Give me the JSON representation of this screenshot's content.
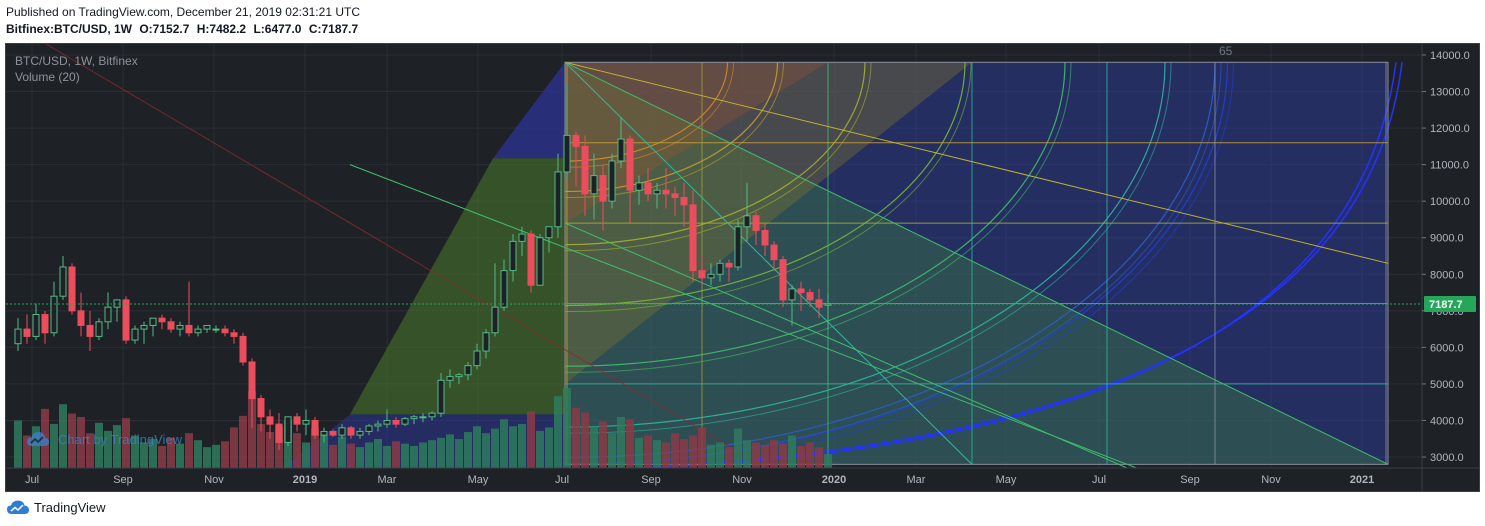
{
  "header": {
    "published": "Published on TradingView.com, December 21, 2019 02:31:21 UTC",
    "symbol": "Bitfinex:BTC/USD, 1W",
    "o": "O:7152.7",
    "h": "H:7482.2",
    "l": "L:6477.0",
    "c": "C:7187.7"
  },
  "legend": {
    "title": "BTC/USD, 1W, Bitfinex",
    "volume": "Volume (20)"
  },
  "watermark": "Chart by TradingView",
  "footer": "TradingView",
  "gann_label": "65",
  "last_price_label": "7187.7",
  "colors": {
    "background": "#1e2226",
    "up": "#53b987",
    "down": "#eb4d5c",
    "vol_up": "#2f7b5e",
    "vol_down": "#8c3b47",
    "last_price": "#26a65b",
    "axis_text": "#b2b5be",
    "watermark": "#3d7fc8"
  },
  "chart_data": {
    "type": "candlestick",
    "title": "BTC/USD, 1W, Bitfinex",
    "y_ticks": [
      "3000.0",
      "4000.0",
      "5000.0",
      "6000.0",
      "7000.0",
      "8000.0",
      "9000.0",
      "10000.0",
      "11000.0",
      "12000.0",
      "13000.0",
      "14000.0"
    ],
    "x_ticks": [
      "Jul",
      "Sep",
      "Nov",
      "2019",
      "Mar",
      "May",
      "Jul",
      "Sep",
      "Nov",
      "2020",
      "Mar",
      "May",
      "Jul",
      "Sep",
      "Nov",
      "2021"
    ],
    "ylim": [
      2700,
      14300
    ],
    "last_price": 7187.7,
    "candles": [
      [
        6100,
        6800,
        5900,
        6500
      ],
      [
        6500,
        6900,
        6100,
        6300
      ],
      [
        6300,
        7200,
        6200,
        6900
      ],
      [
        6900,
        7000,
        6100,
        6400
      ],
      [
        6400,
        7800,
        6300,
        7400
      ],
      [
        7400,
        8500,
        7300,
        8200
      ],
      [
        8200,
        8300,
        6900,
        7000
      ],
      [
        7000,
        7500,
        6300,
        6600
      ],
      [
        6600,
        7000,
        5900,
        6300
      ],
      [
        6300,
        6800,
        6200,
        6700
      ],
      [
        6700,
        7500,
        6500,
        7100
      ],
      [
        7100,
        7300,
        6700,
        7300
      ],
      [
        7300,
        7400,
        6100,
        6200
      ],
      [
        6200,
        6600,
        6100,
        6500
      ],
      [
        6500,
        6700,
        6100,
        6600
      ],
      [
        6600,
        6800,
        6300,
        6800
      ],
      [
        6800,
        6900,
        6500,
        6700
      ],
      [
        6700,
        6800,
        6400,
        6500
      ],
      [
        6500,
        6700,
        6300,
        6600
      ],
      [
        6600,
        7800,
        6300,
        6400
      ],
      [
        6400,
        6600,
        6300,
        6500
      ],
      [
        6500,
        6600,
        6400,
        6600
      ],
      [
        6500,
        6600,
        6400,
        6500
      ],
      [
        6500,
        6600,
        6300,
        6400
      ],
      [
        6400,
        6500,
        6100,
        6300
      ],
      [
        6300,
        6400,
        5500,
        5600
      ],
      [
        5600,
        5700,
        3800,
        4600
      ],
      [
        4600,
        4700,
        3700,
        4100
      ],
      [
        4100,
        4300,
        3500,
        3900
      ],
      [
        3900,
        4200,
        3200,
        3400
      ],
      [
        3400,
        4100,
        3300,
        4100
      ],
      [
        4100,
        4200,
        3700,
        3900
      ],
      [
        3900,
        4300,
        3600,
        4000
      ],
      [
        4000,
        4100,
        3500,
        3600
      ],
      [
        3600,
        3800,
        3400,
        3700
      ],
      [
        3700,
        3750,
        3550,
        3600
      ],
      [
        3600,
        3900,
        3500,
        3800
      ],
      [
        3800,
        3850,
        3500,
        3600
      ],
      [
        3600,
        3800,
        3500,
        3700
      ],
      [
        3700,
        3900,
        3600,
        3850
      ],
      [
        3850,
        4000,
        3700,
        3900
      ],
      [
        3900,
        4300,
        3800,
        4000
      ],
      [
        4000,
        4100,
        3800,
        3900
      ],
      [
        3900,
        4100,
        3850,
        4050
      ],
      [
        4050,
        4150,
        3900,
        4100
      ],
      [
        4100,
        4200,
        3950,
        4100
      ],
      [
        4100,
        4250,
        4000,
        4200
      ],
      [
        4200,
        5300,
        4100,
        5100
      ],
      [
        5100,
        5400,
        4900,
        5200
      ],
      [
        5200,
        5300,
        5000,
        5250
      ],
      [
        5250,
        5600,
        5100,
        5500
      ],
      [
        5500,
        6100,
        5400,
        5900
      ],
      [
        5900,
        6500,
        5700,
        6400
      ],
      [
        6400,
        8300,
        6300,
        7100
      ],
      [
        7100,
        8400,
        7000,
        8100
      ],
      [
        8100,
        9100,
        7800,
        8900
      ],
      [
        8900,
        9300,
        8500,
        9100
      ],
      [
        9100,
        9200,
        7500,
        7700
      ],
      [
        7700,
        9100,
        7700,
        9000
      ],
      [
        9000,
        9300,
        8600,
        9300
      ],
      [
        9300,
        11300,
        9000,
        10800
      ],
      [
        10800,
        13200,
        10600,
        11800
      ],
      [
        11800,
        11900,
        10400,
        11500
      ],
      [
        11500,
        11800,
        9600,
        10200
      ],
      [
        10200,
        11300,
        9500,
        10700
      ],
      [
        10700,
        11000,
        9200,
        10000
      ],
      [
        10000,
        11300,
        9800,
        11100
      ],
      [
        11100,
        12300,
        10900,
        11700
      ],
      [
        11700,
        11800,
        9400,
        10300
      ],
      [
        10300,
        10700,
        9900,
        10500
      ],
      [
        10500,
        10900,
        10000,
        10200
      ],
      [
        10200,
        10500,
        9800,
        10300
      ],
      [
        10300,
        10900,
        9800,
        10200
      ],
      [
        10200,
        10400,
        9600,
        10100
      ],
      [
        10100,
        10500,
        9300,
        9900
      ],
      [
        9900,
        10300,
        7800,
        8100
      ],
      [
        8100,
        8500,
        7700,
        7900
      ],
      [
        7900,
        8300,
        7700,
        8000
      ],
      [
        8000,
        8400,
        7800,
        8300
      ],
      [
        8300,
        8400,
        7800,
        8200
      ],
      [
        8200,
        9500,
        8100,
        9300
      ],
      [
        9300,
        10500,
        8900,
        9600
      ],
      [
        9600,
        9700,
        8800,
        9200
      ],
      [
        9200,
        9400,
        8500,
        8800
      ],
      [
        8800,
        8900,
        8100,
        8400
      ],
      [
        8400,
        8500,
        7100,
        7300
      ],
      [
        7300,
        7700,
        6600,
        7600
      ],
      [
        7600,
        7800,
        7000,
        7500
      ],
      [
        7500,
        7600,
        7100,
        7300
      ],
      [
        7300,
        7600,
        6800,
        7100
      ],
      [
        7152.7,
        7482.2,
        6477.0,
        7187.7
      ]
    ],
    "volume_relative": [
      0.41,
      0.28,
      0.36,
      0.51,
      0.38,
      0.55,
      0.47,
      0.44,
      0.3,
      0.39,
      0.32,
      0.37,
      0.43,
      0.28,
      0.22,
      0.25,
      0.19,
      0.26,
      0.21,
      0.3,
      0.24,
      0.18,
      0.2,
      0.23,
      0.35,
      0.45,
      0.66,
      0.38,
      0.31,
      0.36,
      0.41,
      0.3,
      0.22,
      0.34,
      0.28,
      0.2,
      0.27,
      0.21,
      0.18,
      0.22,
      0.25,
      0.19,
      0.23,
      0.21,
      0.19,
      0.22,
      0.24,
      0.26,
      0.29,
      0.25,
      0.31,
      0.36,
      0.3,
      0.34,
      0.42,
      0.36,
      0.38,
      0.49,
      0.32,
      0.35,
      0.62,
      0.69,
      0.52,
      0.48,
      0.36,
      0.4,
      0.3,
      0.44,
      0.42,
      0.26,
      0.28,
      0.24,
      0.22,
      0.3,
      0.25,
      0.28,
      0.35,
      0.2,
      0.22,
      0.18,
      0.34,
      0.24,
      0.22,
      0.2,
      0.24,
      0.21,
      0.28,
      0.19,
      0.22,
      0.18,
      0.12
    ],
    "gann_box": {
      "time_start_index": 61,
      "price_top": 13800,
      "price_bottom": 2800,
      "time_lines_index": [
        61,
        76,
        90,
        106,
        121,
        133,
        152
      ],
      "price_lines": [
        11600,
        9400,
        7200,
        5000
      ]
    }
  }
}
